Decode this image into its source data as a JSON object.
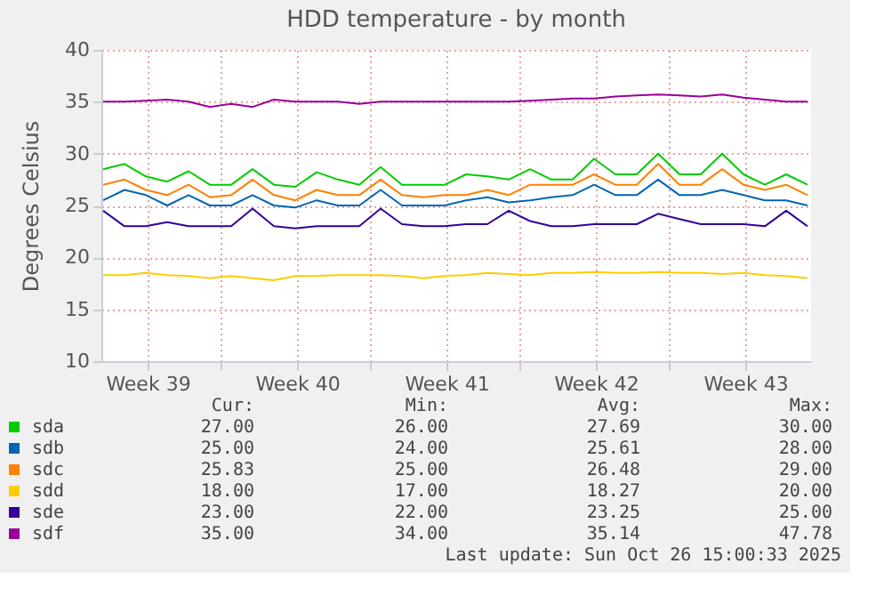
{
  "chart_data": {
    "type": "line",
    "title": "HDD temperature - by month",
    "ylabel": "Degrees Celsius",
    "x": [
      "2025-09-23T12:00",
      "2025-09-24T12:00",
      "2025-09-25T12:00",
      "2025-09-26T12:00",
      "2025-09-27T12:00",
      "2025-09-28T12:00",
      "2025-09-29T12:00",
      "2025-09-30T12:00",
      "2025-10-01T12:00",
      "2025-10-02T12:00",
      "2025-10-03T12:00",
      "2025-10-04T12:00",
      "2025-10-05T12:00",
      "2025-10-06T12:00",
      "2025-10-07T12:00",
      "2025-10-08T12:00",
      "2025-10-09T12:00",
      "2025-10-10T12:00",
      "2025-10-11T12:00",
      "2025-10-12T12:00",
      "2025-10-13T12:00",
      "2025-10-14T12:00",
      "2025-10-15T12:00",
      "2025-10-16T12:00",
      "2025-10-17T12:00",
      "2025-10-18T12:00",
      "2025-10-19T12:00",
      "2025-10-20T12:00",
      "2025-10-21T12:00",
      "2025-10-22T12:00",
      "2025-10-23T12:00",
      "2025-10-24T12:00",
      "2025-10-25T12:00",
      "2025-10-26T12:00"
    ],
    "series": [
      {
        "name": "sda",
        "color": "#00cc00",
        "values": [
          28.5,
          29,
          27.8,
          27.3,
          28.3,
          27,
          27,
          28.5,
          27,
          26.8,
          28.2,
          27.5,
          27,
          28.7,
          27,
          27,
          27,
          28,
          27.8,
          27.5,
          28.5,
          27.5,
          27.5,
          29.5,
          28,
          28,
          30,
          28,
          28,
          30,
          28,
          27,
          28,
          27
        ]
      },
      {
        "name": "sdb",
        "color": "#0066b3",
        "values": [
          25.5,
          26.5,
          26,
          25,
          26,
          25,
          25,
          26,
          25,
          24.8,
          25.5,
          25,
          25,
          26.5,
          25,
          25,
          25,
          25.5,
          25.8,
          25.3,
          25.5,
          25.8,
          26,
          27,
          26,
          26,
          27.5,
          26,
          26,
          26.5,
          26,
          25.5,
          25.5,
          25
        ]
      },
      {
        "name": "sdc",
        "color": "#ff8000",
        "values": [
          27,
          27.5,
          26.5,
          26,
          27,
          25.8,
          26,
          27.5,
          26,
          25.5,
          26.5,
          26,
          26,
          27.5,
          26,
          25.8,
          26,
          26,
          26.5,
          26,
          27,
          27,
          27,
          28,
          27,
          27,
          29,
          27,
          27,
          28.5,
          27,
          26.5,
          27,
          26
        ]
      },
      {
        "name": "sdd",
        "color": "#ffcc00",
        "values": [
          18.3,
          18.3,
          18.5,
          18.3,
          18.2,
          18,
          18.2,
          18,
          17.8,
          18.2,
          18.2,
          18.3,
          18.3,
          18.3,
          18.2,
          18,
          18.2,
          18.3,
          18.5,
          18.4,
          18.3,
          18.5,
          18.5,
          18.6,
          18.5,
          18.5,
          18.6,
          18.5,
          18.5,
          18.4,
          18.5,
          18.3,
          18.2,
          18
        ]
      },
      {
        "name": "sde",
        "color": "#330099",
        "values": [
          24.5,
          23,
          23,
          23.4,
          23,
          23,
          23,
          24.7,
          23,
          22.8,
          23,
          23,
          23,
          24.7,
          23.2,
          23,
          23,
          23.2,
          23.2,
          24.5,
          23.5,
          23,
          23,
          23.2,
          23.2,
          23.2,
          24.2,
          23.7,
          23.2,
          23.2,
          23.2,
          23,
          24.5,
          23
        ]
      },
      {
        "name": "sdf",
        "color": "#990099",
        "values": [
          35,
          35,
          35.1,
          35.2,
          35,
          34.5,
          34.8,
          34.5,
          35.2,
          35,
          35,
          35,
          34.8,
          35,
          35,
          35,
          35,
          35,
          35,
          35,
          35.1,
          35.2,
          35.3,
          35.3,
          35.5,
          35.6,
          35.7,
          35.6,
          35.5,
          35.7,
          35.4,
          35.2,
          35,
          35
        ]
      }
    ],
    "xlim": [
      "2025-09-23T10:00",
      "2025-10-26T16:00"
    ],
    "xticks": [
      {
        "value": "2025-09-25T14:00",
        "label": "Week 39"
      },
      {
        "value": "2025-09-29T00:00",
        "label": null
      },
      {
        "value": "2025-10-02T14:00",
        "label": "Week 40"
      },
      {
        "value": "2025-10-06T00:00",
        "label": null
      },
      {
        "value": "2025-10-09T14:00",
        "label": "Week 41"
      },
      {
        "value": "2025-10-13T00:00",
        "label": null
      },
      {
        "value": "2025-10-16T14:00",
        "label": "Week 42"
      },
      {
        "value": "2025-10-20T00:00",
        "label": null
      },
      {
        "value": "2025-10-23T14:00",
        "label": "Week 43"
      }
    ],
    "ylim": [
      10,
      40
    ],
    "yticks": [
      10,
      15,
      20,
      25,
      30,
      35,
      40
    ],
    "grid": true,
    "legend": "bottom",
    "annotations": [
      "Cur:",
      "Min:",
      "Avg:",
      "Max:",
      "27.00",
      "26.00",
      "27.69",
      "30.00",
      "25.00",
      "24.00",
      "25.61",
      "28.00",
      "25.83",
      "25.00",
      "26.48",
      "29.00",
      "18.00",
      "17.00",
      "18.27",
      "20.00",
      "23.00",
      "22.00",
      "23.25",
      "25.00",
      "35.00",
      "34.00",
      "35.14",
      "47.78",
      "Last update: Sun Oct 26 15:00:33 2025"
    ]
  }
}
